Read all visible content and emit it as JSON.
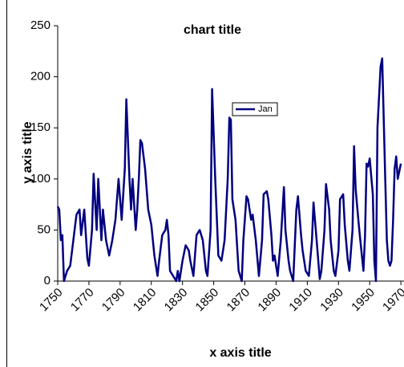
{
  "chart_data": {
    "type": "line",
    "title": "chart title",
    "x_label": "x axis title",
    "y_label": "y axis title",
    "legend": "top-center",
    "x": [
      1750,
      1751,
      1752,
      1753,
      1754,
      1756,
      1758,
      1760,
      1762,
      1764,
      1765,
      1767,
      1769,
      1770,
      1772,
      1773,
      1775,
      1776,
      1778,
      1779,
      1781,
      1783,
      1785,
      1787,
      1789,
      1791,
      1793,
      1794,
      1796,
      1797,
      1798,
      1800,
      1801,
      1802,
      1803,
      1804,
      1806,
      1808,
      1810,
      1812,
      1814,
      1815,
      1817,
      1819,
      1820,
      1821,
      1822,
      1824,
      1826,
      1827,
      1828,
      1830,
      1832,
      1834,
      1835,
      1837,
      1839,
      1841,
      1843,
      1845,
      1846,
      1848,
      1849,
      1851,
      1853,
      1855,
      1857,
      1859,
      1860,
      1861,
      1862,
      1864,
      1866,
      1868,
      1869,
      1871,
      1872,
      1874,
      1875,
      1877,
      1879,
      1881,
      1882,
      1884,
      1885,
      1887,
      1888,
      1889,
      1891,
      1893,
      1895,
      1896,
      1898,
      1899,
      1901,
      1903,
      1904,
      1906,
      1907,
      1909,
      1911,
      1913,
      1914,
      1916,
      1918,
      1919,
      1921,
      1922,
      1924,
      1925,
      1927,
      1928,
      1930,
      1931,
      1933,
      1934,
      1936,
      1937,
      1939,
      1940,
      1941,
      1943,
      1944,
      1946,
      1947,
      1948,
      1949,
      1950,
      1952,
      1953,
      1954,
      1955,
      1957,
      1958,
      1960,
      1961,
      1962,
      1963,
      1964,
      1965,
      1966,
      1967,
      1968,
      1970
    ],
    "series": [
      {
        "name": "Jan",
        "color": "#000080",
        "values": [
          73,
          70,
          40,
          45,
          0,
          10,
          15,
          40,
          65,
          70,
          45,
          70,
          22,
          15,
          50,
          105,
          50,
          100,
          40,
          70,
          40,
          25,
          40,
          60,
          100,
          60,
          110,
          178,
          100,
          70,
          100,
          50,
          70,
          100,
          138,
          135,
          110,
          70,
          55,
          25,
          5,
          20,
          45,
          50,
          60,
          45,
          10,
          5,
          0,
          10,
          0,
          20,
          35,
          30,
          20,
          5,
          45,
          50,
          40,
          10,
          5,
          50,
          188,
          100,
          25,
          20,
          40,
          100,
          160,
          158,
          80,
          60,
          10,
          0,
          40,
          83,
          80,
          60,
          65,
          40,
          5,
          40,
          85,
          88,
          80,
          45,
          20,
          25,
          5,
          40,
          92,
          50,
          20,
          10,
          0,
          70,
          83,
          45,
          30,
          10,
          5,
          40,
          77,
          40,
          2,
          10,
          50,
          95,
          70,
          40,
          10,
          5,
          30,
          80,
          85,
          55,
          20,
          10,
          50,
          132,
          90,
          55,
          40,
          10,
          45,
          115,
          112,
          120,
          85,
          20,
          0,
          150,
          210,
          218,
          100,
          40,
          20,
          15,
          20,
          60,
          110,
          122,
          100,
          115
        ]
      }
    ],
    "xlim": [
      1750,
      1972
    ],
    "xticks": [
      1750,
      1770,
      1790,
      1810,
      1830,
      1850,
      1870,
      1890,
      1910,
      1930,
      1950,
      1970
    ],
    "ylim": [
      0,
      250
    ],
    "yticks": [
      0,
      50,
      100,
      150,
      200,
      250
    ]
  }
}
